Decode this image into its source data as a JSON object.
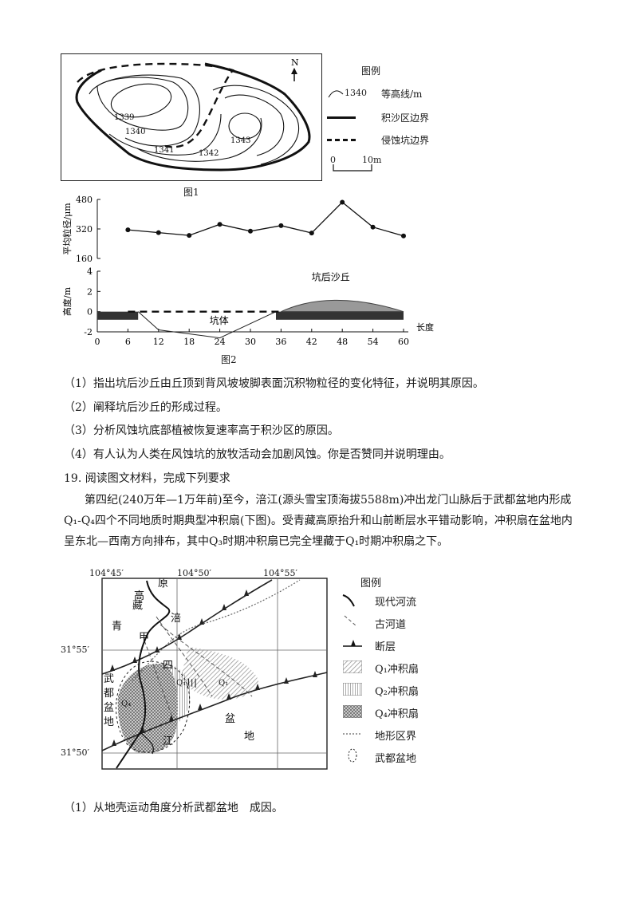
{
  "figure1": {
    "caption": "图1",
    "north": "N",
    "contour_labels": [
      "1339",
      "1340",
      "1341",
      "1342",
      "1343"
    ],
    "legend": {
      "title": "图例",
      "items": [
        {
          "sample": "1340",
          "label": "等高线/m"
        },
        {
          "label": "积沙区边界"
        },
        {
          "label": "侵蚀坑边界"
        }
      ],
      "scale_zero": "0",
      "scale_end": "10m"
    }
  },
  "figure2": {
    "caption": "图2",
    "chart_data": [
      {
        "type": "line",
        "ylabel": "平均粒径/μm",
        "ylim": [
          160,
          480
        ],
        "yticks": [
          "480",
          "320",
          "160"
        ],
        "x": [
          6,
          12,
          18,
          24,
          30,
          36,
          42,
          48,
          54,
          60
        ],
        "values": [
          315,
          300,
          285,
          345,
          308,
          338,
          298,
          465,
          330,
          282
        ]
      },
      {
        "type": "area",
        "ylabel": "高度/m",
        "xlabel": "长度/m",
        "ylim": [
          -2,
          4
        ],
        "yticks": [
          "4",
          "2",
          "0",
          "-2"
        ],
        "xticks": [
          "0",
          "6",
          "12",
          "18",
          "24",
          "30",
          "36",
          "42",
          "48",
          "54",
          "60"
        ],
        "annotations": [
          "坑后沙丘",
          "坑体"
        ]
      }
    ]
  },
  "questions_18": [
    "（1）指出坑后沙丘由丘顶到背风坡坡脚表面沉积物粒径的变化特征，并说明其原因。",
    "（2）阐释坑后沙丘的形成过程。",
    "（3）分析风蚀坑底部植被恢复速率高于积沙区的原因。",
    "（4）有人认为人类在风蚀坑的放牧活动会加剧风蚀。你是否赞同并说明理由。"
  ],
  "q19": {
    "heading": "19. 阅读图文材料，完成下列要求",
    "paragraph": "第四纪(240万年—1万年前)至今，涪江(源头雪宝顶海拔5588m)冲出龙门山脉后于武都盆地内形成Q₁-Q₄四个不同地质时期典型冲积扇(下图)。受青藏高原抬升和山前断层水平错动影响，冲积扇在盆地内呈东北—西南方向排布，其中Q₃时期冲积扇已完全埋藏于Q₁时期冲积扇之下。",
    "question": "（1）从地壳运动角度分析武都盆地　成因。"
  },
  "figure3": {
    "lon_labels": [
      "104°45′",
      "104°50′",
      "104°55′"
    ],
    "lat_labels": [
      "31°55′",
      "31°50′"
    ],
    "place_labels": {
      "qing": "青",
      "zang": "藏",
      "gao": "高",
      "yuan": "原",
      "fu": "涪",
      "jia": "甲",
      "si": "四",
      "chuan": "川",
      "pen": "盆",
      "di": "地",
      "jiang": "江",
      "wudu": [
        "武",
        "都",
        "盆",
        "地"
      ],
      "q1": "Q₁",
      "q2": "Q₂",
      "q4": "Q₄"
    },
    "legend": {
      "title": "图例",
      "items": [
        "现代河流",
        "古河道",
        "断层",
        "Q₁冲积扇",
        "Q₂冲积扇",
        "Q₄冲积扇",
        "地形区界",
        "武都盆地"
      ]
    }
  }
}
